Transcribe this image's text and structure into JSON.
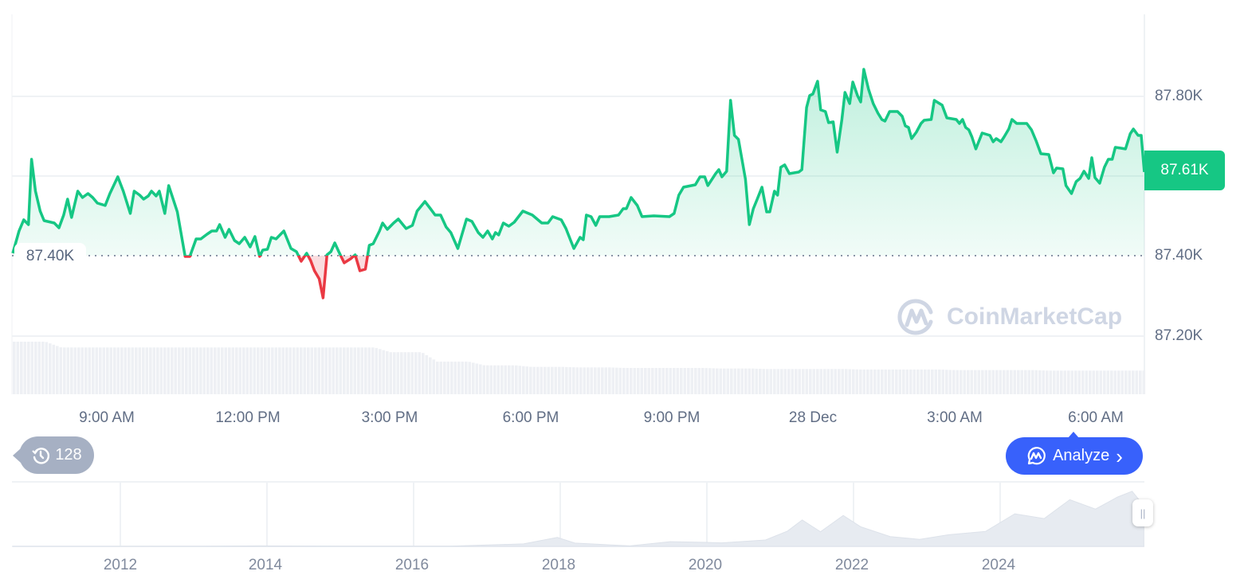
{
  "chart_data": {
    "type": "area",
    "currency_suffix": "K",
    "y_unit": "thousand USD",
    "ylim": [
      87.1,
      87.98
    ],
    "y_ticks": [
      "87.80K",
      "87.40K",
      "87.20K"
    ],
    "x_ticks": [
      "9:00 AM",
      "12:00 PM",
      "3:00 PM",
      "6:00 PM",
      "9:00 PM",
      "28 Dec",
      "3:00 AM",
      "6:00 AM"
    ],
    "baseline_value": 87.4,
    "baseline_label": "87.40K",
    "current_price_label": "87.61K",
    "colors": {
      "up": "#16c784",
      "down": "#ea3943",
      "accent": "#3861fb"
    },
    "grid": true,
    "series": [
      {
        "points": [
          [
            "07:00",
            87.406
          ],
          [
            "07:08",
            87.462
          ],
          [
            "07:14",
            87.49
          ],
          [
            "07:20",
            87.478
          ],
          [
            "07:24",
            87.642
          ],
          [
            "07:29",
            87.562
          ],
          [
            "07:35",
            87.512
          ],
          [
            "07:40",
            87.488
          ],
          [
            "07:53",
            87.482
          ],
          [
            "07:59",
            87.47
          ],
          [
            "08:05",
            87.502
          ],
          [
            "08:10",
            87.542
          ],
          [
            "08:15",
            87.496
          ],
          [
            "08:23",
            87.562
          ],
          [
            "08:29",
            87.546
          ],
          [
            "08:36",
            87.556
          ],
          [
            "08:42",
            87.546
          ],
          [
            "08:48",
            87.532
          ],
          [
            "08:58",
            87.526
          ],
          [
            "09:04",
            87.556
          ],
          [
            "09:14",
            87.598
          ],
          [
            "09:21",
            87.562
          ],
          [
            "09:30",
            87.506
          ],
          [
            "09:35",
            87.562
          ],
          [
            "09:42",
            87.552
          ],
          [
            "09:47",
            87.542
          ],
          [
            "09:53",
            87.55
          ],
          [
            "09:57",
            87.562
          ],
          [
            "10:03",
            87.55
          ],
          [
            "10:07",
            87.562
          ],
          [
            "10:14",
            87.506
          ],
          [
            "10:19",
            87.576
          ],
          [
            "10:30",
            87.51
          ],
          [
            "10:40",
            87.398
          ],
          [
            "10:46",
            87.398
          ],
          [
            "10:54",
            87.442
          ],
          [
            "11:00",
            87.442
          ],
          [
            "11:08",
            87.454
          ],
          [
            "11:14",
            87.462
          ],
          [
            "11:20",
            87.462
          ],
          [
            "11:24",
            87.478
          ],
          [
            "11:31",
            87.446
          ],
          [
            "11:36",
            87.466
          ],
          [
            "11:43",
            87.438
          ],
          [
            "11:49",
            87.43
          ],
          [
            "11:56",
            87.446
          ],
          [
            "12:03",
            87.422
          ],
          [
            "12:09",
            87.448
          ],
          [
            "12:15",
            87.398
          ],
          [
            "12:19",
            87.414
          ],
          [
            "12:25",
            87.416
          ],
          [
            "12:30",
            87.446
          ],
          [
            "12:36",
            87.442
          ],
          [
            "12:46",
            87.462
          ],
          [
            "12:55",
            87.418
          ],
          [
            "13:02",
            87.41
          ],
          [
            "13:08",
            87.386
          ],
          [
            "13:15",
            87.406
          ],
          [
            "13:20",
            87.388
          ],
          [
            "13:25",
            87.362
          ],
          [
            "13:31",
            87.342
          ],
          [
            "13:36",
            87.294
          ],
          [
            "13:41",
            87.402
          ],
          [
            "13:46",
            87.41
          ],
          [
            "13:51",
            87.432
          ],
          [
            "13:56",
            87.41
          ],
          [
            "14:03",
            87.382
          ],
          [
            "14:11",
            87.392
          ],
          [
            "14:17",
            87.402
          ],
          [
            "14:23",
            87.362
          ],
          [
            "14:30",
            87.366
          ],
          [
            "14:35",
            87.426
          ],
          [
            "14:40",
            87.43
          ],
          [
            "14:48",
            87.462
          ],
          [
            "14:52",
            87.482
          ],
          [
            "14:58",
            87.466
          ],
          [
            "15:06",
            87.482
          ],
          [
            "15:12",
            87.492
          ],
          [
            "15:22",
            87.468
          ],
          [
            "15:30",
            87.476
          ],
          [
            "15:36",
            87.512
          ],
          [
            "15:46",
            87.536
          ],
          [
            "15:53",
            87.518
          ],
          [
            "15:59",
            87.502
          ],
          [
            "16:06",
            87.502
          ],
          [
            "16:13",
            87.472
          ],
          [
            "16:19",
            87.458
          ],
          [
            "16:28",
            87.418
          ],
          [
            "16:39",
            87.492
          ],
          [
            "16:46",
            87.486
          ],
          [
            "16:54",
            87.458
          ],
          [
            "17:00",
            87.446
          ],
          [
            "17:06",
            87.462
          ],
          [
            "17:12",
            87.442
          ],
          [
            "17:16",
            87.458
          ],
          [
            "17:20",
            87.452
          ],
          [
            "17:26",
            87.482
          ],
          [
            "17:33",
            87.474
          ],
          [
            "17:40",
            87.484
          ],
          [
            "17:51",
            87.512
          ],
          [
            "18:03",
            87.502
          ],
          [
            "18:15",
            87.482
          ],
          [
            "18:23",
            87.482
          ],
          [
            "18:29",
            87.498
          ],
          [
            "18:40",
            87.49
          ],
          [
            "18:46",
            87.468
          ],
          [
            "18:52",
            87.438
          ],
          [
            "18:56",
            87.418
          ],
          [
            "19:04",
            87.446
          ],
          [
            "19:08",
            87.44
          ],
          [
            "19:12",
            87.502
          ],
          [
            "19:18",
            87.498
          ],
          [
            "19:24",
            87.476
          ],
          [
            "19:29",
            87.498
          ],
          [
            "19:41",
            87.498
          ],
          [
            "19:53",
            87.502
          ],
          [
            "19:59",
            87.518
          ],
          [
            "20:03",
            87.518
          ],
          [
            "20:09",
            87.546
          ],
          [
            "20:17",
            87.526
          ],
          [
            "20:23",
            87.498
          ],
          [
            "20:38",
            87.5
          ],
          [
            "20:58",
            87.498
          ],
          [
            "21:04",
            87.506
          ],
          [
            "21:10",
            87.552
          ],
          [
            "21:16",
            87.572
          ],
          [
            "21:31",
            87.578
          ],
          [
            "21:37",
            87.598
          ],
          [
            "21:43",
            87.598
          ],
          [
            "21:47",
            87.576
          ],
          [
            "21:57",
            87.606
          ],
          [
            "22:01",
            87.616
          ],
          [
            "22:05",
            87.598
          ],
          [
            "22:11",
            87.612
          ],
          [
            "22:16",
            87.79
          ],
          [
            "22:21",
            87.702
          ],
          [
            "22:26",
            87.692
          ],
          [
            "22:35",
            87.592
          ],
          [
            "22:40",
            87.478
          ],
          [
            "22:45",
            87.518
          ],
          [
            "22:50",
            87.542
          ],
          [
            "22:56",
            87.572
          ],
          [
            "23:02",
            87.51
          ],
          [
            "23:06",
            87.51
          ],
          [
            "23:12",
            87.562
          ],
          [
            "23:16",
            87.552
          ],
          [
            "23:20",
            87.622
          ],
          [
            "23:25",
            87.628
          ],
          [
            "23:31",
            87.606
          ],
          [
            "23:43",
            87.61
          ],
          [
            "23:47",
            87.616
          ],
          [
            "23:53",
            87.772
          ],
          [
            "23:57",
            87.802
          ],
          [
            "00:01",
            87.806
          ],
          [
            "00:07",
            87.838
          ],
          [
            "00:11",
            87.766
          ],
          [
            "00:17",
            87.762
          ],
          [
            "00:21",
            87.734
          ],
          [
            "00:27",
            87.736
          ],
          [
            "00:32",
            87.66
          ],
          [
            "00:38",
            87.742
          ],
          [
            "00:42",
            87.81
          ],
          [
            "00:48",
            87.782
          ],
          [
            "00:52",
            87.836
          ],
          [
            "00:58",
            87.802
          ],
          [
            "01:02",
            87.786
          ],
          [
            "01:06",
            87.868
          ],
          [
            "01:12",
            87.818
          ],
          [
            "01:18",
            87.782
          ],
          [
            "01:24",
            87.758
          ],
          [
            "01:29",
            87.742
          ],
          [
            "01:33",
            87.738
          ],
          [
            "01:39",
            87.762
          ],
          [
            "01:49",
            87.762
          ],
          [
            "01:55",
            87.75
          ],
          [
            "01:59",
            87.726
          ],
          [
            "02:03",
            87.722
          ],
          [
            "02:07",
            87.694
          ],
          [
            "02:13",
            87.71
          ],
          [
            "02:19",
            87.732
          ],
          [
            "02:23",
            87.74
          ],
          [
            "02:32",
            87.742
          ],
          [
            "02:36",
            87.79
          ],
          [
            "02:46",
            87.778
          ],
          [
            "02:52",
            87.746
          ],
          [
            "03:04",
            87.742
          ],
          [
            "03:08",
            87.732
          ],
          [
            "03:12",
            87.742
          ],
          [
            "03:16",
            87.722
          ],
          [
            "03:20",
            87.716
          ],
          [
            "03:24",
            87.698
          ],
          [
            "03:29",
            87.668
          ],
          [
            "03:37",
            87.708
          ],
          [
            "03:47",
            87.702
          ],
          [
            "03:51",
            87.686
          ],
          [
            "03:55",
            87.694
          ],
          [
            "04:01",
            87.686
          ],
          [
            "04:05",
            87.698
          ],
          [
            "04:11",
            87.718
          ],
          [
            "04:15",
            87.742
          ],
          [
            "04:21",
            87.732
          ],
          [
            "04:34",
            87.732
          ],
          [
            "04:40",
            87.716
          ],
          [
            "04:46",
            87.688
          ],
          [
            "04:52",
            87.656
          ],
          [
            "05:02",
            87.654
          ],
          [
            "05:08",
            87.608
          ],
          [
            "05:12",
            87.62
          ],
          [
            "05:20",
            87.618
          ],
          [
            "05:24",
            87.576
          ],
          [
            "05:31",
            87.556
          ],
          [
            "05:37",
            87.586
          ],
          [
            "05:42",
            87.594
          ],
          [
            "05:47",
            87.612
          ],
          [
            "05:53",
            87.594
          ],
          [
            "05:57",
            87.646
          ],
          [
            "06:01",
            87.596
          ],
          [
            "06:07",
            87.582
          ],
          [
            "06:13",
            87.622
          ],
          [
            "06:18",
            87.642
          ],
          [
            "06:23",
            87.642
          ],
          [
            "06:27",
            87.672
          ],
          [
            "06:34",
            87.67
          ],
          [
            "06:40",
            87.668
          ],
          [
            "06:46",
            87.706
          ],
          [
            "06:50",
            87.718
          ],
          [
            "06:56",
            87.702
          ],
          [
            "07:00",
            87.702
          ],
          [
            "07:04",
            87.61
          ]
        ]
      }
    ],
    "volume_relative_hourly": [
      100,
      89,
      89,
      89,
      89,
      89,
      89,
      89,
      80,
      62,
      55,
      52,
      51,
      50,
      50,
      49,
      48,
      48,
      47,
      47,
      46,
      46,
      45,
      45,
      45
    ],
    "navigator": {
      "x_ticks": [
        "2012",
        "2014",
        "2016",
        "2018",
        "2020",
        "2022",
        "2024"
      ],
      "points": [
        [
          2010.53,
          0
        ],
        [
          2013.0,
          0.2
        ],
        [
          2013.9,
          1
        ],
        [
          2015.0,
          0.3
        ],
        [
          2016.5,
          0.6
        ],
        [
          2017.5,
          3
        ],
        [
          2017.96,
          19
        ],
        [
          2018.2,
          9
        ],
        [
          2018.95,
          3.5
        ],
        [
          2019.5,
          11
        ],
        [
          2020.0,
          7
        ],
        [
          2020.2,
          5
        ],
        [
          2020.8,
          13
        ],
        [
          2021.1,
          35
        ],
        [
          2021.3,
          60
        ],
        [
          2021.55,
          33
        ],
        [
          2021.86,
          66
        ],
        [
          2022.1,
          40
        ],
        [
          2022.5,
          20
        ],
        [
          2022.9,
          16.5
        ],
        [
          2023.3,
          28
        ],
        [
          2023.8,
          34
        ],
        [
          2024.2,
          70
        ],
        [
          2024.6,
          58
        ],
        [
          2024.95,
          100
        ],
        [
          2025.3,
          82
        ],
        [
          2025.6,
          110
        ],
        [
          2025.8,
          122
        ],
        [
          2025.96,
          88
        ]
      ]
    }
  },
  "watermark": "CoinMarketCap",
  "history_badge": {
    "count": "128",
    "icon": "history-icon"
  },
  "analyze_button": {
    "label": "Analyze",
    "icon": "cmc-ai-icon",
    "chevron": "›"
  },
  "nav_handle": "||"
}
